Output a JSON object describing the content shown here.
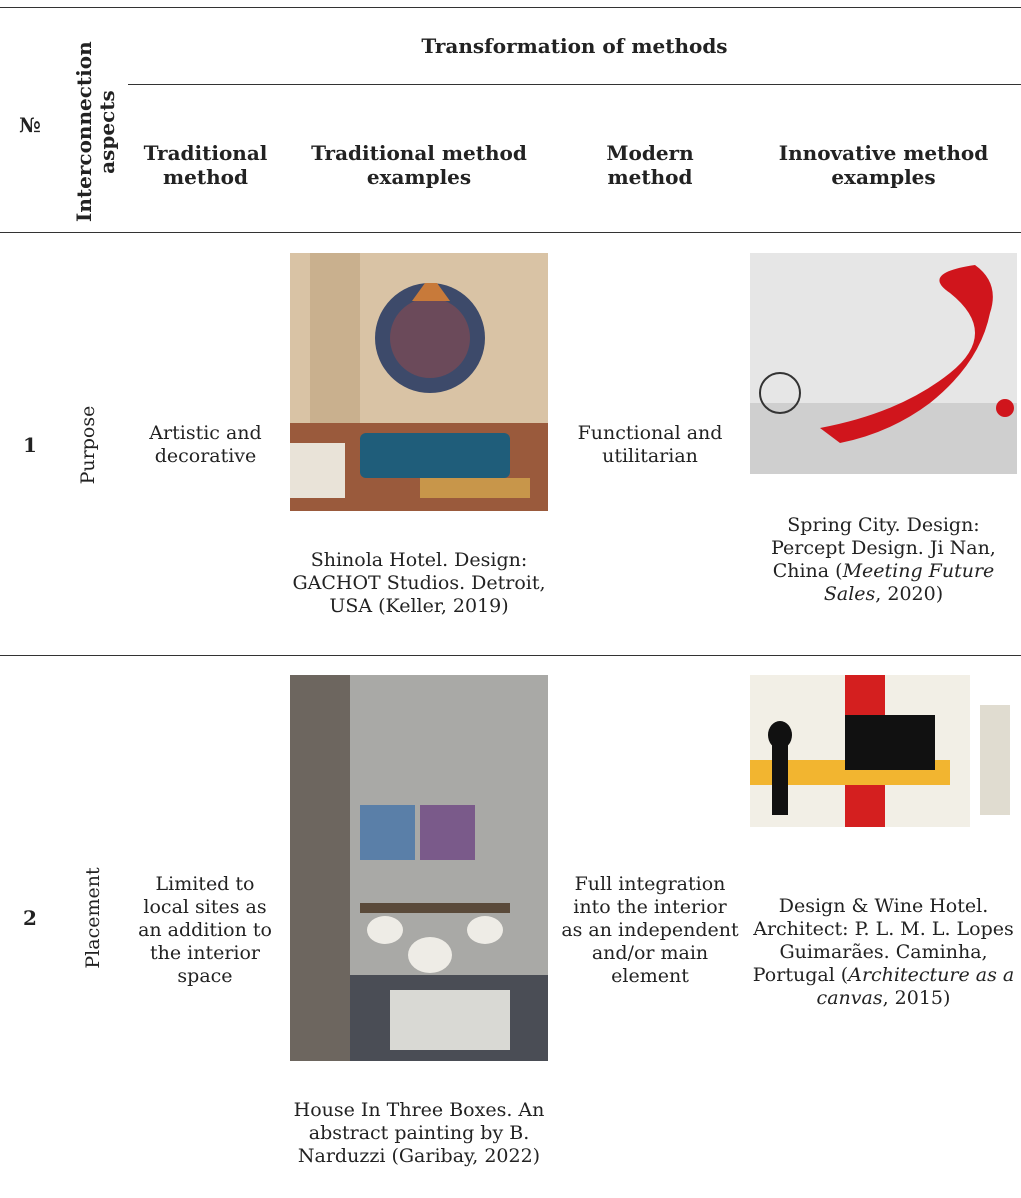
{
  "table": {
    "header": {
      "number": "№",
      "aspects": "Interconnection aspects",
      "group": "Transformation of methods",
      "columns": [
        "Traditional method",
        "Traditional method examples",
        "Modern method",
        "Innovative method examples"
      ]
    },
    "rows": [
      {
        "number": "1",
        "aspect": "Purpose",
        "traditional": "Artistic and decorative",
        "traditional_example": [
          "Shinola Hotel. Design: GACHOT Studios. Detroit, USA (Keller, 2019)"
        ],
        "modern": "Functional and utilitarian",
        "innovative_example": [
          "Spring City. Design: Percept Design. Ji Nan, China (",
          {
            "text": "Meeting Future Sales",
            "italic": true
          },
          ", 2020)"
        ]
      },
      {
        "number": "2",
        "aspect": "Placement",
        "traditional": "Limited to local sites as an addition to the interior space",
        "traditional_example": [
          "House In Three Boxes. An abstract painting by B. Narduzzi (Garibay, 2022)"
        ],
        "modern": "Full integration into the interior as an independent and/or main element",
        "innovative_example": [
          "Design & Wine Hotel. Architect: P. L. M. L. Lopes Guimarães. Caminha, Portugal (",
          {
            "text": "Architecture as a canvas",
            "italic": true
          },
          ", 2015)"
        ]
      }
    ]
  }
}
